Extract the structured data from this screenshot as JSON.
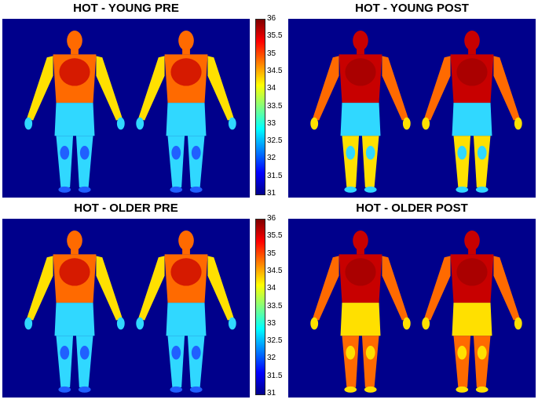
{
  "panels": [
    {
      "title": "HOT - YOUNG PRE"
    },
    {
      "title": "HOT - YOUNG POST"
    },
    {
      "title": "HOT - OLDER PRE"
    },
    {
      "title": "HOT - OLDER POST"
    }
  ],
  "colorbar": {
    "min": 31,
    "max": 36,
    "ticks": [
      "36",
      "35.5",
      "35",
      "34.5",
      "34",
      "33.5",
      "33",
      "32.5",
      "32",
      "31.5",
      "31"
    ],
    "colormap": [
      "#00008b",
      "#0000ff",
      "#0080ff",
      "#00ffff",
      "#80ff80",
      "#ffff00",
      "#ff8000",
      "#ff0000",
      "#800000"
    ]
  },
  "colors": {
    "background": "#00008b",
    "hot": "#c80000",
    "warm": "#ff6a00",
    "yellow": "#ffe000",
    "cyan": "#30d8ff",
    "cool": "#2060ff"
  }
}
